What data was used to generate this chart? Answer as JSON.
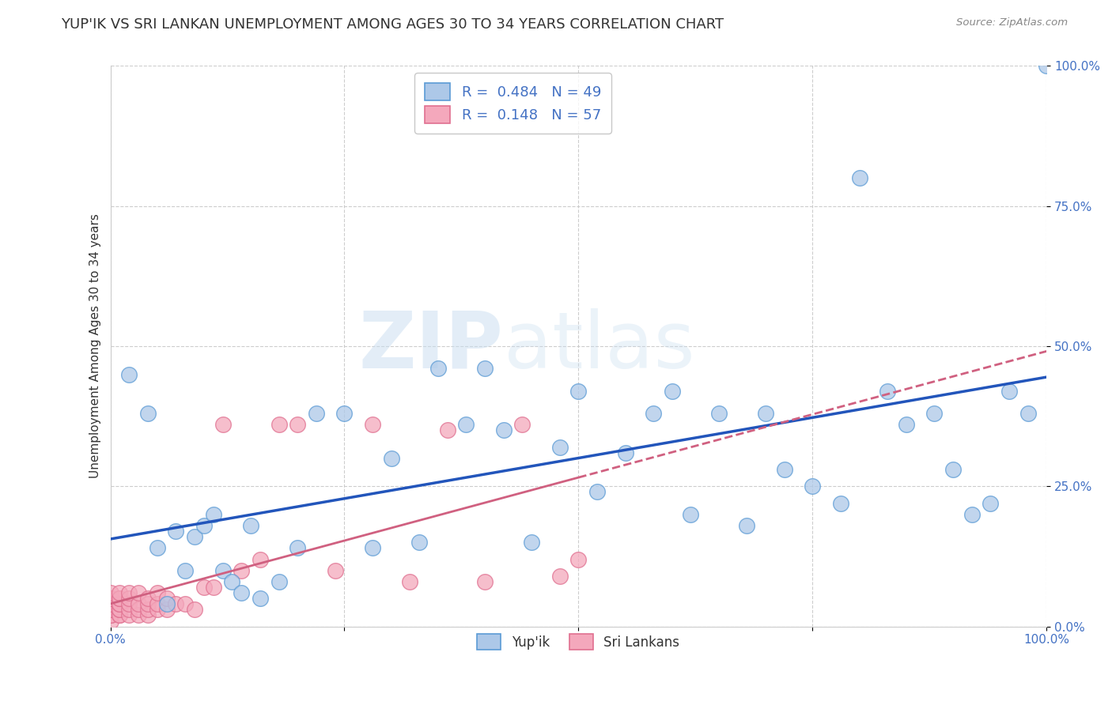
{
  "title": "YUP'IK VS SRI LANKAN UNEMPLOYMENT AMONG AGES 30 TO 34 YEARS CORRELATION CHART",
  "source": "Source: ZipAtlas.com",
  "ylabel": "Unemployment Among Ages 30 to 34 years",
  "xlim": [
    0,
    1
  ],
  "ylim": [
    0,
    1
  ],
  "xticks": [
    0.0,
    0.25,
    0.5,
    0.75,
    1.0
  ],
  "yticks": [
    0.0,
    0.25,
    0.5,
    0.75,
    1.0
  ],
  "xticklabels": [
    "0.0%",
    "",
    "",
    "",
    "100.0%"
  ],
  "yupik_color": "#adc8e8",
  "srilanka_color": "#f4a8bc",
  "yupik_edge": "#5b9bd5",
  "srilanka_edge": "#e07090",
  "trendline_yupik": "#2255bb",
  "trendline_sri": "#d06080",
  "background_color": "#ffffff",
  "grid_color": "#c8c8c8",
  "yupik_x": [
    0.02,
    0.04,
    0.05,
    0.06,
    0.07,
    0.08,
    0.09,
    0.1,
    0.11,
    0.12,
    0.13,
    0.14,
    0.15,
    0.16,
    0.18,
    0.2,
    0.22,
    0.25,
    0.28,
    0.3,
    0.33,
    0.35,
    0.38,
    0.4,
    0.42,
    0.45,
    0.48,
    0.5,
    0.52,
    0.55,
    0.58,
    0.6,
    0.62,
    0.65,
    0.68,
    0.7,
    0.72,
    0.75,
    0.78,
    0.8,
    0.83,
    0.85,
    0.88,
    0.9,
    0.92,
    0.94,
    0.96,
    0.98,
    1.0
  ],
  "yupik_y": [
    0.45,
    0.38,
    0.14,
    0.04,
    0.17,
    0.1,
    0.16,
    0.18,
    0.2,
    0.1,
    0.08,
    0.06,
    0.18,
    0.05,
    0.08,
    0.14,
    0.38,
    0.38,
    0.14,
    0.3,
    0.15,
    0.46,
    0.36,
    0.46,
    0.35,
    0.15,
    0.32,
    0.42,
    0.24,
    0.31,
    0.38,
    0.42,
    0.2,
    0.38,
    0.18,
    0.38,
    0.28,
    0.25,
    0.22,
    0.8,
    0.42,
    0.36,
    0.38,
    0.28,
    0.2,
    0.22,
    0.42,
    0.38,
    1.0
  ],
  "sri_x": [
    0.0,
    0.0,
    0.0,
    0.0,
    0.0,
    0.0,
    0.0,
    0.0,
    0.0,
    0.0,
    0.0,
    0.0,
    0.01,
    0.01,
    0.01,
    0.01,
    0.01,
    0.01,
    0.01,
    0.01,
    0.01,
    0.02,
    0.02,
    0.02,
    0.02,
    0.02,
    0.03,
    0.03,
    0.03,
    0.03,
    0.04,
    0.04,
    0.04,
    0.04,
    0.05,
    0.05,
    0.05,
    0.06,
    0.06,
    0.07,
    0.08,
    0.09,
    0.1,
    0.11,
    0.12,
    0.14,
    0.16,
    0.18,
    0.2,
    0.24,
    0.28,
    0.32,
    0.36,
    0.4,
    0.44,
    0.48,
    0.5
  ],
  "sri_y": [
    0.01,
    0.02,
    0.02,
    0.03,
    0.03,
    0.04,
    0.04,
    0.04,
    0.05,
    0.05,
    0.05,
    0.06,
    0.02,
    0.02,
    0.03,
    0.03,
    0.04,
    0.04,
    0.05,
    0.05,
    0.06,
    0.02,
    0.03,
    0.04,
    0.05,
    0.06,
    0.02,
    0.03,
    0.04,
    0.06,
    0.02,
    0.03,
    0.04,
    0.05,
    0.03,
    0.04,
    0.06,
    0.03,
    0.05,
    0.04,
    0.04,
    0.03,
    0.07,
    0.07,
    0.36,
    0.1,
    0.12,
    0.36,
    0.36,
    0.1,
    0.36,
    0.08,
    0.35,
    0.08,
    0.36,
    0.09,
    0.12
  ],
  "watermark_zip": "ZIP",
  "watermark_atlas": "atlas",
  "title_fontsize": 13,
  "axis_fontsize": 11,
  "tick_fontsize": 11,
  "tick_color": "#4472c4"
}
